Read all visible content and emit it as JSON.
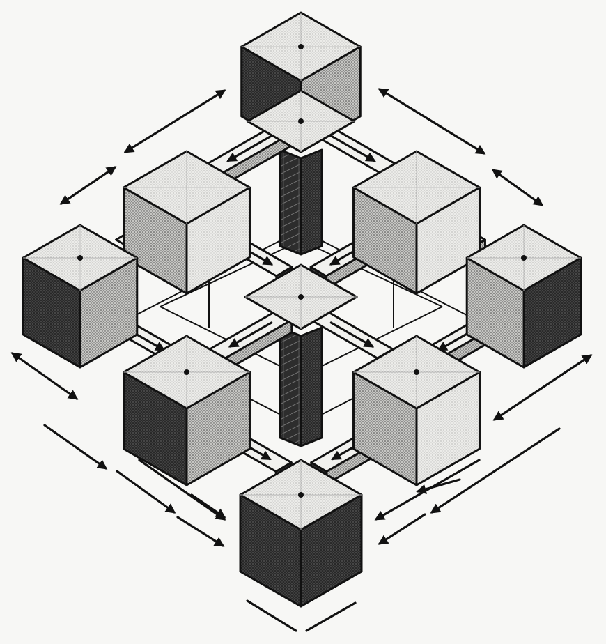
{
  "diagram": {
    "title": "",
    "description_visible_text": [],
    "colors": {
      "background": "#f7f7f5",
      "ink": "#111111",
      "top_face": "#e9e9e6",
      "light_face": "#c9c9c6",
      "mid_face": "#9b9b98",
      "dark_face": "#3a3a3a"
    },
    "elements": {
      "cube_count": 9,
      "beam_count": 12,
      "arrow_count": 18,
      "shaft_count": 2
    }
  }
}
